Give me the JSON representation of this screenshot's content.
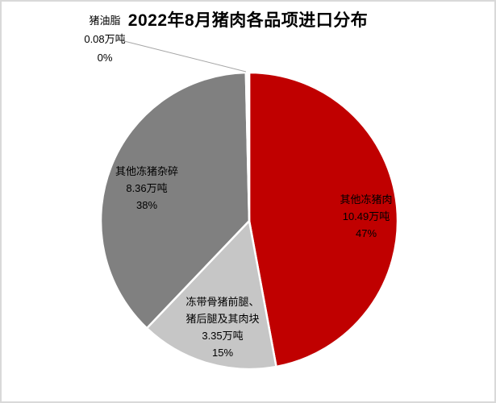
{
  "chart_data": {
    "type": "pie",
    "title": "2022年8月猪肉各品项进口分布",
    "value_unit": "万吨",
    "direction": "clockwise",
    "start_angle_deg": 0,
    "legend": "none",
    "slices": [
      {
        "name": "其他冻猪肉",
        "value": 10.49,
        "amount": "10.49万吨",
        "percent": "47%",
        "color": "#c00000",
        "label_position": "inside"
      },
      {
        "name": "冻带骨猪前腿、猪后腿及其肉块",
        "value": 3.35,
        "amount": "3.35万吨",
        "percent": "15%",
        "color": "#c6c6c6",
        "label_position": "inside"
      },
      {
        "name": "其他冻猪杂碎",
        "value": 8.36,
        "amount": "8.36万吨",
        "percent": "38%",
        "color": "#808080",
        "label_position": "inside"
      },
      {
        "name": "猪油脂",
        "value": 0.08,
        "amount": "0.08万吨",
        "percent": "0%",
        "color": "#ffffff",
        "label_position": "outside-callout"
      }
    ],
    "colors": {
      "slice_border": "#ffffff",
      "leader_line": "#a6a6a6",
      "frame_border": "#d9d9d9",
      "text": "#000000",
      "background": "#ffffff"
    }
  }
}
